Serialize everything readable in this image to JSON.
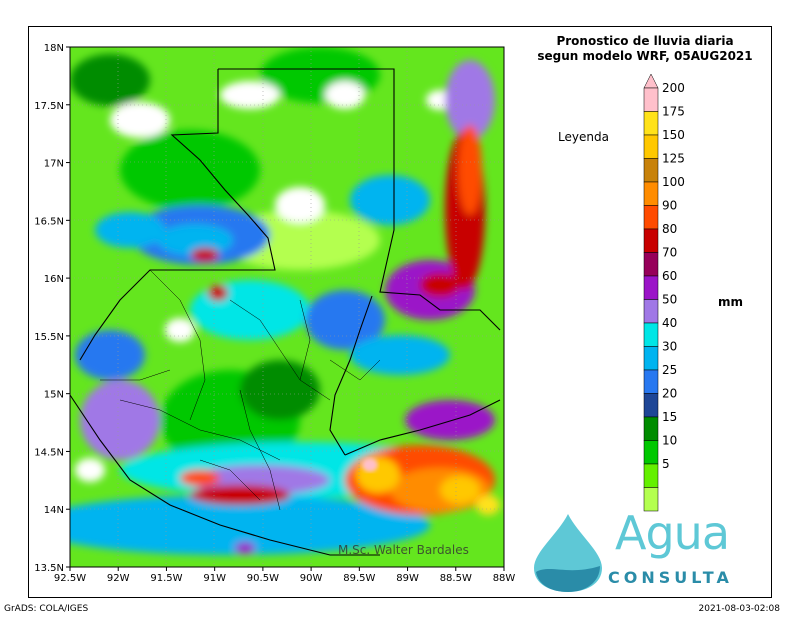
{
  "title_line1": "Pronostico de lluvia diaria",
  "title_line2": "segun modelo WRF,  05AUG2021",
  "legend_label": "Leyenda",
  "unit": "mm",
  "author": "M.Sc. Walter Bardales",
  "footer_left": "GrADS: COLA/IGES",
  "footer_right": "2021-08-03-02:08",
  "logo": {
    "word": "Agua",
    "sub": "CONSULTA"
  },
  "map": {
    "lon_range": [
      -92.5,
      -88
    ],
    "lat_range": [
      13.5,
      18
    ],
    "lon_ticks": [
      "92.5W",
      "92W",
      "91.5W",
      "91W",
      "90.5W",
      "90W",
      "89.5W",
      "89W",
      "88.5W",
      "88W"
    ],
    "lat_ticks": [
      "13.5N",
      "14N",
      "14.5N",
      "15N",
      "15.5N",
      "16N",
      "16.5N",
      "17N",
      "17.5N",
      "18N"
    ],
    "colorbar": [
      {
        "value": "200",
        "color": "#ffc0cb"
      },
      {
        "value": "175",
        "color": "#ffe21a"
      },
      {
        "value": "150",
        "color": "#ffc800"
      },
      {
        "value": "125",
        "color": "#c8820a"
      },
      {
        "value": "100",
        "color": "#ff8c00"
      },
      {
        "value": "90",
        "color": "#ff4b00"
      },
      {
        "value": "80",
        "color": "#c80000"
      },
      {
        "value": "70",
        "color": "#96005a"
      },
      {
        "value": "60",
        "color": "#9b14c8"
      },
      {
        "value": "50",
        "color": "#a078e6"
      },
      {
        "value": "40",
        "color": "#00e6e6"
      },
      {
        "value": "30",
        "color": "#00b4f0"
      },
      {
        "value": "25",
        "color": "#2878f0"
      },
      {
        "value": "20",
        "color": "#1e4696"
      },
      {
        "value": "15",
        "color": "#008c00"
      },
      {
        "value": "10",
        "color": "#00c800"
      },
      {
        "value": "5",
        "color": "#64f000"
      },
      {
        "value": "",
        "color": "#b4ff50"
      }
    ]
  }
}
